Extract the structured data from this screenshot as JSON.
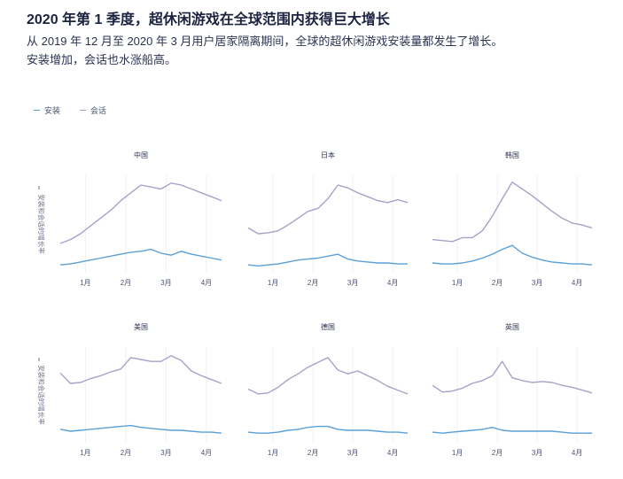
{
  "header": {
    "title": "2020 年第 1 季度，超休闲游戏在全球范围内获得巨大增长",
    "subtitle_line1": "从 2019 年 12 月至 2020 年 3 月用户居家隔离期间，全球的超休闲游戏安装量都发生了增长。",
    "subtitle_line2": "安装增加，会话也水涨船高。"
  },
  "legend": [
    {
      "label": "安装",
      "color": "#5aa0d8"
    },
    {
      "label": "会话",
      "color": "#a9a0c8"
    }
  ],
  "colors": {
    "installs": "#5aa0d8",
    "sessions": "#a9a0c8"
  },
  "chart_data": [
    {
      "type": "line",
      "title": "中国",
      "ylabel": "安装和会话的增长率",
      "x_ticks": [
        "1月",
        "2月",
        "3月",
        "4月"
      ],
      "x": [
        0,
        1,
        2,
        3,
        4,
        5,
        6,
        7,
        8,
        9,
        10,
        11,
        12,
        13,
        14,
        15,
        16
      ],
      "tick_positions": [
        2.5,
        6.5,
        10.5,
        14.5
      ],
      "ylim": [
        0,
        100
      ],
      "series": [
        {
          "name": "安装",
          "values": [
            8,
            9,
            11,
            13,
            15,
            17,
            19,
            21,
            22,
            24,
            20,
            18,
            22,
            19,
            17,
            15,
            13
          ]
        },
        {
          "name": "会话",
          "values": [
            30,
            34,
            40,
            48,
            56,
            64,
            74,
            82,
            90,
            88,
            86,
            92,
            90,
            86,
            82,
            78,
            74
          ]
        }
      ]
    },
    {
      "type": "line",
      "title": "日本",
      "ylabel": "",
      "x_ticks": [
        "1月",
        "2月",
        "3月",
        "4月"
      ],
      "x": [
        0,
        1,
        2,
        3,
        4,
        5,
        6,
        7,
        8,
        9,
        10,
        11,
        12,
        13,
        14,
        15,
        16
      ],
      "tick_positions": [
        2.5,
        6.5,
        10.5,
        14.5
      ],
      "ylim": [
        0,
        100
      ],
      "series": [
        {
          "name": "安装",
          "values": [
            8,
            7,
            8,
            9,
            11,
            13,
            14,
            15,
            17,
            19,
            14,
            12,
            11,
            10,
            10,
            9,
            9
          ]
        },
        {
          "name": "会话",
          "values": [
            46,
            40,
            41,
            43,
            49,
            56,
            63,
            66,
            76,
            90,
            87,
            82,
            78,
            74,
            72,
            75,
            72
          ]
        }
      ]
    },
    {
      "type": "line",
      "title": "韩国",
      "ylabel": "",
      "x_ticks": [
        "1月",
        "2月",
        "3月",
        "4月"
      ],
      "x": [
        0,
        1,
        2,
        3,
        4,
        5,
        6,
        7,
        8,
        9,
        10,
        11,
        12,
        13,
        14,
        15,
        16
      ],
      "tick_positions": [
        2.5,
        6.5,
        10.5,
        14.5
      ],
      "ylim": [
        0,
        100
      ],
      "series": [
        {
          "name": "安装",
          "values": [
            10,
            9,
            9,
            10,
            12,
            15,
            19,
            24,
            28,
            20,
            16,
            13,
            11,
            10,
            9,
            9,
            8
          ]
        },
        {
          "name": "会话",
          "values": [
            34,
            33,
            32,
            36,
            36,
            43,
            58,
            76,
            93,
            86,
            79,
            71,
            63,
            56,
            51,
            49,
            46
          ]
        }
      ]
    },
    {
      "type": "line",
      "title": "美国",
      "ylabel": "安装和会话的增长率",
      "x_ticks": [
        "1月",
        "2月",
        "3月",
        "4月"
      ],
      "x": [
        0,
        1,
        2,
        3,
        4,
        5,
        6,
        7,
        8,
        9,
        10,
        11,
        12,
        13,
        14,
        15,
        16
      ],
      "tick_positions": [
        2.5,
        6.5,
        10.5,
        14.5
      ],
      "ylim": [
        0,
        100
      ],
      "series": [
        {
          "name": "安装",
          "values": [
            14,
            12,
            13,
            14,
            15,
            16,
            17,
            18,
            16,
            15,
            14,
            13,
            13,
            12,
            11,
            11,
            10
          ]
        },
        {
          "name": "会话",
          "values": [
            73,
            62,
            63,
            67,
            70,
            74,
            77,
            89,
            87,
            85,
            85,
            91,
            86,
            75,
            70,
            66,
            62
          ]
        }
      ]
    },
    {
      "type": "line",
      "title": "德国",
      "ylabel": "",
      "x_ticks": [
        "1月",
        "2月",
        "3月",
        "4月"
      ],
      "x": [
        0,
        1,
        2,
        3,
        4,
        5,
        6,
        7,
        8,
        9,
        10,
        11,
        12,
        13,
        14,
        15,
        16
      ],
      "tick_positions": [
        2.5,
        6.5,
        10.5,
        14.5
      ],
      "ylim": [
        0,
        100
      ],
      "series": [
        {
          "name": "安装",
          "values": [
            11,
            10,
            10,
            11,
            13,
            14,
            16,
            17,
            17,
            14,
            13,
            13,
            13,
            12,
            11,
            11,
            10
          ]
        },
        {
          "name": "会话",
          "values": [
            56,
            51,
            52,
            58,
            66,
            72,
            79,
            84,
            89,
            76,
            72,
            75,
            70,
            65,
            59,
            55,
            51
          ]
        }
      ]
    },
    {
      "type": "line",
      "title": "英国",
      "ylabel": "",
      "x_ticks": [
        "1月",
        "2月",
        "3月",
        "4月"
      ],
      "x": [
        0,
        1,
        2,
        3,
        4,
        5,
        6,
        7,
        8,
        9,
        10,
        11,
        12,
        13,
        14,
        15,
        16
      ],
      "tick_positions": [
        2.5,
        6.5,
        10.5,
        14.5
      ],
      "ylim": [
        0,
        100
      ],
      "series": [
        {
          "name": "安装",
          "values": [
            11,
            10,
            11,
            12,
            13,
            14,
            16,
            13,
            12,
            12,
            12,
            12,
            12,
            11,
            10,
            10,
            10
          ]
        },
        {
          "name": "会话",
          "values": [
            60,
            53,
            54,
            57,
            62,
            65,
            70,
            85,
            68,
            65,
            63,
            64,
            63,
            60,
            58,
            55,
            52
          ]
        }
      ]
    }
  ]
}
